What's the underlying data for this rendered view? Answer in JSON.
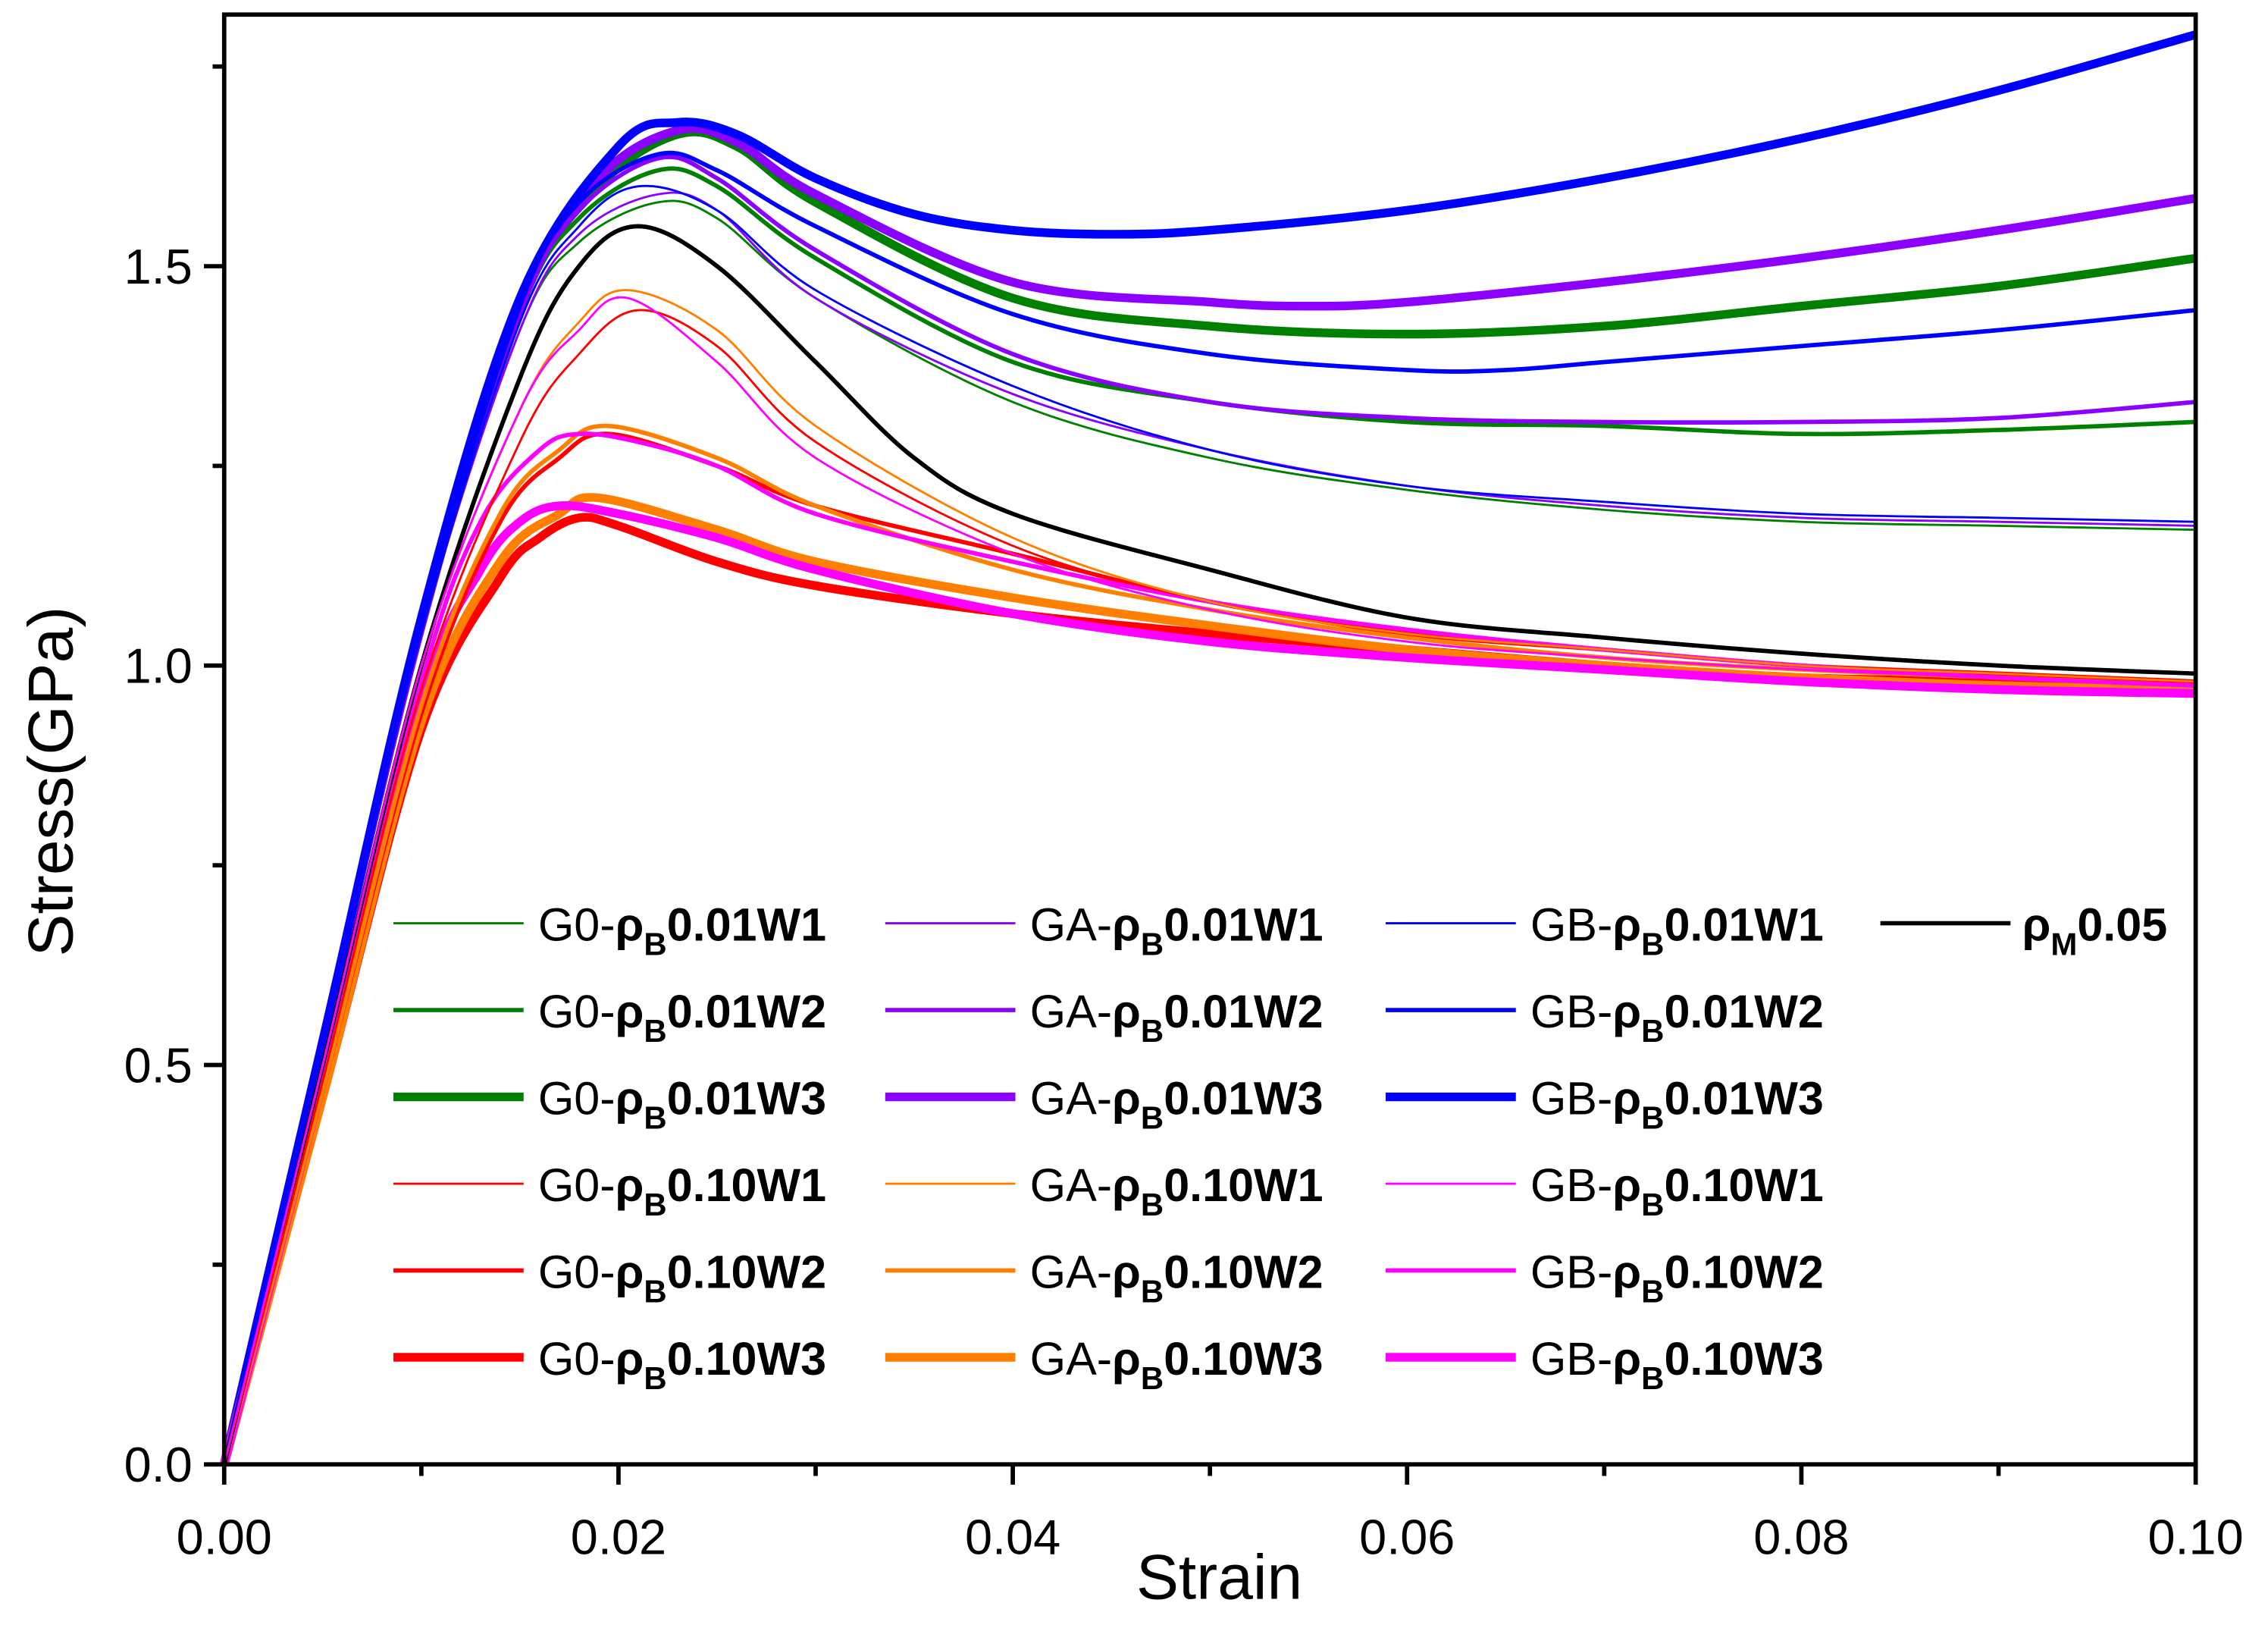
{
  "chart_data": {
    "type": "line",
    "title": "",
    "xlabel": "Strain",
    "ylabel": "Stress(GPa)",
    "xlim": [
      0,
      0.1
    ],
    "ylim": [
      0,
      1.815
    ],
    "xticks": [
      0,
      0.02,
      0.04,
      0.06,
      0.08,
      0.1
    ],
    "xtick_labels": [
      "0.00",
      "0.02",
      "0.04",
      "0.06",
      "0.08",
      "0.10"
    ],
    "xminor": [
      0.01,
      0.03,
      0.05,
      0.07,
      0.09
    ],
    "yticks": [
      0,
      0.5,
      1.0,
      1.5
    ],
    "ytick_labels": [
      "0.0",
      "0.5",
      "1.0",
      "1.5"
    ],
    "yminor": [
      0.25,
      0.75,
      1.25,
      1.75
    ],
    "grid": false,
    "legend_placement": "bottom-center, 4 columns",
    "series": [
      {
        "name": "G0-ρB0.01W1",
        "prefix": "G0-",
        "rho": "ρ",
        "sub": "B",
        "suffix": "0.01W1",
        "color": "#008000",
        "weight": "thin",
        "x": [
          0,
          0.005,
          0.01,
          0.015,
          0.018,
          0.022,
          0.025,
          0.03,
          0.04,
          0.05,
          0.06,
          0.07,
          0.08,
          0.09,
          0.1
        ],
        "y": [
          0,
          0.52,
          1.04,
          1.42,
          1.53,
          1.58,
          1.56,
          1.46,
          1.33,
          1.26,
          1.22,
          1.195,
          1.18,
          1.175,
          1.17
        ]
      },
      {
        "name": "G0-ρB0.01W2",
        "prefix": "G0-",
        "rho": "ρ",
        "sub": "B",
        "suffix": "0.01W2",
        "color": "#008000",
        "weight": "medium",
        "x": [
          0,
          0.005,
          0.01,
          0.015,
          0.018,
          0.022,
          0.025,
          0.03,
          0.04,
          0.05,
          0.06,
          0.07,
          0.08,
          0.09,
          0.1
        ],
        "y": [
          0,
          0.53,
          1.05,
          1.44,
          1.56,
          1.62,
          1.6,
          1.51,
          1.38,
          1.33,
          1.305,
          1.3,
          1.29,
          1.295,
          1.305
        ]
      },
      {
        "name": "G0-ρB0.01W3",
        "prefix": "G0-",
        "rho": "ρ",
        "sub": "B",
        "suffix": "0.01W3",
        "color": "#008000",
        "weight": "thick",
        "x": [
          0,
          0.005,
          0.01,
          0.015,
          0.019,
          0.023,
          0.026,
          0.03,
          0.04,
          0.05,
          0.06,
          0.07,
          0.08,
          0.09,
          0.1
        ],
        "y": [
          0,
          0.53,
          1.05,
          1.45,
          1.6,
          1.665,
          1.65,
          1.58,
          1.46,
          1.425,
          1.415,
          1.425,
          1.45,
          1.475,
          1.51
        ]
      },
      {
        "name": "G0-ρB0.10W1",
        "prefix": "G0-",
        "rho": "ρ",
        "sub": "B",
        "suffix": "0.10W1",
        "color": "#ff0000",
        "weight": "thin",
        "x": [
          0,
          0.005,
          0.01,
          0.015,
          0.018,
          0.021,
          0.025,
          0.03,
          0.04,
          0.05,
          0.06,
          0.07,
          0.08,
          0.09,
          0.1
        ],
        "y": [
          0,
          0.48,
          0.97,
          1.28,
          1.39,
          1.445,
          1.4,
          1.28,
          1.15,
          1.08,
          1.04,
          1.02,
          1.0,
          0.99,
          0.98
        ]
      },
      {
        "name": "G0-ρB0.10W2",
        "prefix": "G0-",
        "rho": "ρ",
        "sub": "B",
        "suffix": "0.10W2",
        "color": "#ff0000",
        "weight": "medium",
        "x": [
          0,
          0.005,
          0.01,
          0.014,
          0.017,
          0.0195,
          0.025,
          0.03,
          0.04,
          0.05,
          0.06,
          0.07,
          0.08,
          0.09,
          0.1
        ],
        "y": [
          0,
          0.47,
          0.94,
          1.18,
          1.26,
          1.29,
          1.25,
          1.2,
          1.14,
          1.08,
          1.04,
          1.02,
          1.0,
          0.99,
          0.98
        ]
      },
      {
        "name": "G0-ρB0.10W3",
        "prefix": "G0-",
        "rho": "ρ",
        "sub": "B",
        "suffix": "0.10W3",
        "color": "#ff0000",
        "weight": "thick",
        "x": [
          0,
          0.005,
          0.01,
          0.014,
          0.016,
          0.018,
          0.02,
          0.025,
          0.03,
          0.04,
          0.05,
          0.06,
          0.07,
          0.08,
          0.09,
          0.1
        ],
        "y": [
          0,
          0.46,
          0.92,
          1.11,
          1.16,
          1.185,
          1.175,
          1.13,
          1.1,
          1.065,
          1.04,
          1.02,
          1.0,
          0.985,
          0.98,
          0.975
        ]
      },
      {
        "name": "GA-ρB0.01W1",
        "prefix": "GA-",
        "rho": "ρ",
        "sub": "B",
        "suffix": "0.01W1",
        "color": "#8b00ff",
        "weight": "thin",
        "x": [
          0,
          0.005,
          0.01,
          0.015,
          0.018,
          0.022,
          0.025,
          0.03,
          0.04,
          0.05,
          0.06,
          0.07,
          0.08,
          0.09,
          0.1
        ],
        "y": [
          0,
          0.52,
          1.04,
          1.42,
          1.54,
          1.59,
          1.57,
          1.46,
          1.34,
          1.27,
          1.225,
          1.2,
          1.185,
          1.18,
          1.175
        ]
      },
      {
        "name": "GA-ρB0.01W2",
        "prefix": "GA-",
        "rho": "ρ",
        "sub": "B",
        "suffix": "0.01W2",
        "color": "#8b00ff",
        "weight": "medium",
        "x": [
          0,
          0.005,
          0.01,
          0.015,
          0.018,
          0.022,
          0.025,
          0.03,
          0.04,
          0.05,
          0.06,
          0.07,
          0.08,
          0.09,
          0.1
        ],
        "y": [
          0,
          0.53,
          1.05,
          1.44,
          1.57,
          1.635,
          1.61,
          1.52,
          1.39,
          1.33,
          1.31,
          1.305,
          1.305,
          1.31,
          1.33
        ]
      },
      {
        "name": "GA-ρB0.01W3",
        "prefix": "GA-",
        "rho": "ρ",
        "sub": "B",
        "suffix": "0.01W3",
        "color": "#8b00ff",
        "weight": "thick",
        "x": [
          0,
          0.005,
          0.01,
          0.015,
          0.019,
          0.023,
          0.026,
          0.03,
          0.04,
          0.05,
          0.055,
          0.06,
          0.07,
          0.08,
          0.09,
          0.1
        ],
        "y": [
          0,
          0.53,
          1.05,
          1.45,
          1.61,
          1.67,
          1.655,
          1.59,
          1.48,
          1.455,
          1.45,
          1.455,
          1.48,
          1.51,
          1.545,
          1.585
        ]
      },
      {
        "name": "GA-ρB0.10W1",
        "prefix": "GA-",
        "rho": "ρ",
        "sub": "B",
        "suffix": "0.10W1",
        "color": "#ff8000",
        "weight": "thin",
        "x": [
          0,
          0.005,
          0.01,
          0.015,
          0.018,
          0.0205,
          0.025,
          0.03,
          0.04,
          0.05,
          0.06,
          0.07,
          0.08,
          0.09,
          0.1
        ],
        "y": [
          0,
          0.5,
          1.0,
          1.32,
          1.43,
          1.47,
          1.42,
          1.3,
          1.16,
          1.08,
          1.04,
          1.02,
          1.0,
          0.99,
          0.98
        ]
      },
      {
        "name": "GA-ρB0.10W2",
        "prefix": "GA-",
        "rho": "ρ",
        "sub": "B",
        "suffix": "0.10W2",
        "color": "#ff8000",
        "weight": "medium",
        "x": [
          0,
          0.005,
          0.01,
          0.014,
          0.017,
          0.0195,
          0.025,
          0.03,
          0.04,
          0.05,
          0.06,
          0.07,
          0.08,
          0.09,
          0.1
        ],
        "y": [
          0,
          0.47,
          0.95,
          1.19,
          1.27,
          1.3,
          1.26,
          1.2,
          1.12,
          1.07,
          1.035,
          1.01,
          0.995,
          0.985,
          0.975
        ]
      },
      {
        "name": "GA-ρB0.10W3",
        "prefix": "GA-",
        "rho": "ρ",
        "sub": "B",
        "suffix": "0.10W3",
        "color": "#ff8000",
        "weight": "thick",
        "x": [
          0,
          0.005,
          0.01,
          0.014,
          0.017,
          0.019,
          0.025,
          0.03,
          0.04,
          0.05,
          0.06,
          0.07,
          0.08,
          0.09,
          0.1
        ],
        "y": [
          0,
          0.46,
          0.93,
          1.13,
          1.19,
          1.21,
          1.17,
          1.13,
          1.085,
          1.05,
          1.02,
          1.0,
          0.985,
          0.975,
          0.97
        ]
      },
      {
        "name": "GB-ρB0.01W1",
        "prefix": "GB-",
        "rho": "ρ",
        "sub": "B",
        "suffix": "0.01W1",
        "color": "#0000ff",
        "weight": "thin",
        "x": [
          0,
          0.005,
          0.01,
          0.015,
          0.018,
          0.021,
          0.025,
          0.03,
          0.04,
          0.05,
          0.06,
          0.07,
          0.08,
          0.09,
          0.1
        ],
        "y": [
          0,
          0.52,
          1.04,
          1.43,
          1.55,
          1.6,
          1.57,
          1.47,
          1.35,
          1.27,
          1.225,
          1.205,
          1.19,
          1.185,
          1.18
        ]
      },
      {
        "name": "GB-ρB0.01W2",
        "prefix": "GB-",
        "rho": "ρ",
        "sub": "B",
        "suffix": "0.01W2",
        "color": "#0000ff",
        "weight": "medium",
        "x": [
          0,
          0.005,
          0.01,
          0.015,
          0.018,
          0.022,
          0.025,
          0.03,
          0.04,
          0.05,
          0.06,
          0.065,
          0.07,
          0.08,
          0.09,
          0.1
        ],
        "y": [
          0,
          0.53,
          1.05,
          1.45,
          1.58,
          1.64,
          1.62,
          1.55,
          1.44,
          1.39,
          1.37,
          1.37,
          1.38,
          1.4,
          1.42,
          1.445
        ]
      },
      {
        "name": "GB-ρB0.01W3",
        "prefix": "GB-",
        "rho": "ρ",
        "sub": "B",
        "suffix": "0.01W3",
        "color": "#0000ff",
        "weight": "thick",
        "x": [
          0,
          0.005,
          0.01,
          0.015,
          0.02,
          0.023,
          0.026,
          0.03,
          0.035,
          0.04,
          0.045,
          0.05,
          0.06,
          0.07,
          0.08,
          0.09,
          0.1
        ],
        "y": [
          0,
          0.53,
          1.06,
          1.46,
          1.65,
          1.68,
          1.665,
          1.61,
          1.565,
          1.545,
          1.54,
          1.545,
          1.57,
          1.61,
          1.66,
          1.72,
          1.79
        ]
      },
      {
        "name": "GB-ρB0.10W1",
        "prefix": "GB-",
        "rho": "ρ",
        "sub": "B",
        "suffix": "0.10W1",
        "color": "#ff00ff",
        "weight": "thin",
        "x": [
          0,
          0.005,
          0.01,
          0.015,
          0.018,
          0.0205,
          0.025,
          0.03,
          0.04,
          0.05,
          0.06,
          0.07,
          0.08,
          0.09,
          0.1
        ],
        "y": [
          0,
          0.5,
          1.0,
          1.32,
          1.42,
          1.46,
          1.38,
          1.26,
          1.14,
          1.07,
          1.03,
          1.01,
          0.995,
          0.985,
          0.975
        ]
      },
      {
        "name": "GB-ρB0.10W2",
        "prefix": "GB-",
        "rho": "ρ",
        "sub": "B",
        "suffix": "0.10W2",
        "color": "#ff00ff",
        "weight": "medium",
        "x": [
          0,
          0.005,
          0.01,
          0.013,
          0.016,
          0.018,
          0.021,
          0.025,
          0.03,
          0.04,
          0.05,
          0.06,
          0.07,
          0.08,
          0.09,
          0.1
        ],
        "y": [
          0,
          0.49,
          0.98,
          1.18,
          1.27,
          1.29,
          1.28,
          1.25,
          1.19,
          1.13,
          1.08,
          1.045,
          1.02,
          1.0,
          0.985,
          0.975
        ]
      },
      {
        "name": "GB-ρB0.10W3",
        "prefix": "GB-",
        "rho": "ρ",
        "sub": "B",
        "suffix": "0.10W3",
        "color": "#ff00ff",
        "weight": "thick",
        "x": [
          0,
          0.005,
          0.01,
          0.013,
          0.015,
          0.017,
          0.02,
          0.025,
          0.03,
          0.04,
          0.05,
          0.06,
          0.07,
          0.08,
          0.09,
          0.1
        ],
        "y": [
          0,
          0.48,
          0.96,
          1.12,
          1.18,
          1.2,
          1.19,
          1.16,
          1.12,
          1.065,
          1.03,
          1.01,
          0.995,
          0.98,
          0.97,
          0.965
        ]
      },
      {
        "name": "ρM0.05",
        "prefix": "",
        "rho": "ρ",
        "sub": "M",
        "suffix": "0.05",
        "color": "#000000",
        "weight": "medium",
        "x": [
          0,
          0.005,
          0.01,
          0.015,
          0.018,
          0.021,
          0.025,
          0.03,
          0.035,
          0.04,
          0.05,
          0.06,
          0.07,
          0.08,
          0.09,
          0.1
        ],
        "y": [
          0,
          0.5,
          1.0,
          1.36,
          1.5,
          1.55,
          1.5,
          1.38,
          1.26,
          1.19,
          1.12,
          1.06,
          1.035,
          1.015,
          1.0,
          0.99
        ]
      }
    ]
  }
}
